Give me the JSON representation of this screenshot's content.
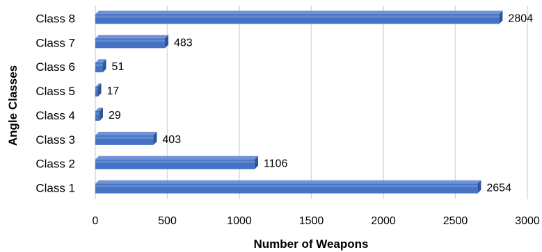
{
  "chart_data": {
    "type": "bar",
    "orientation": "horizontal",
    "categories": [
      "Class 1",
      "Class 2",
      "Class 3",
      "Class 4",
      "Class 5",
      "Class 6",
      "Class 7",
      "Class 8"
    ],
    "values": [
      2654,
      1106,
      403,
      29,
      17,
      51,
      483,
      2804
    ],
    "data_labels": [
      "2654",
      "1106",
      "403",
      "29",
      "17",
      "51",
      "483",
      "2804"
    ],
    "xlabel": "Number of Weapons",
    "ylabel": "Angle Classes",
    "xlim": [
      0,
      3000
    ],
    "xticks": [
      "0",
      "500",
      "1000",
      "1500",
      "2000",
      "2500",
      "3000"
    ],
    "grid": "vertical",
    "legend": "none",
    "bar_color": "#4472c4",
    "bar_side_color": "#2f5597",
    "bar_top_color": "#6f93d6"
  }
}
